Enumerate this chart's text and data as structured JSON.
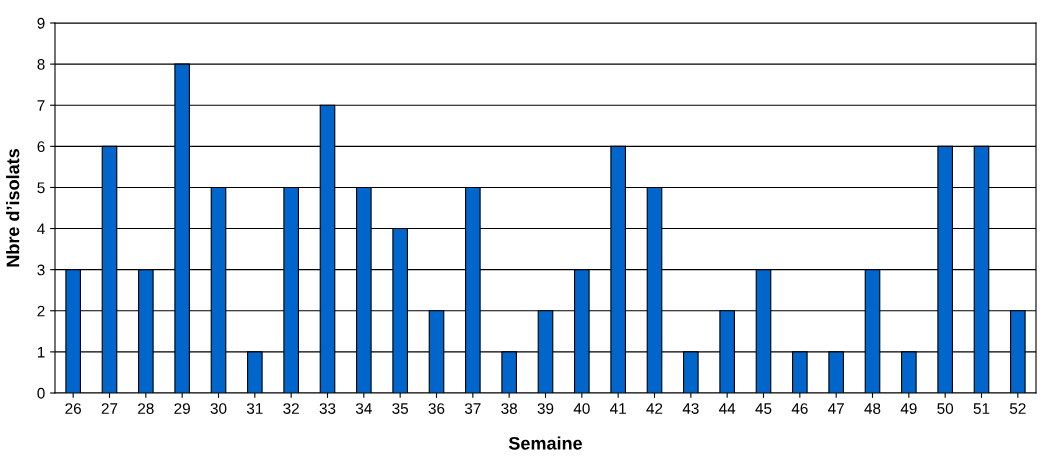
{
  "chart_data": {
    "type": "bar",
    "xlabel": "Semaine",
    "ylabel": "Nbre d’isolats",
    "categories": [
      "26",
      "27",
      "28",
      "29",
      "30",
      "31",
      "32",
      "33",
      "34",
      "35",
      "36",
      "37",
      "38",
      "39",
      "40",
      "41",
      "42",
      "43",
      "44",
      "45",
      "46",
      "47",
      "48",
      "49",
      "50",
      "51",
      "52"
    ],
    "series": [
      {
        "color": "#0066cc",
        "values": [
          3,
          6,
          3,
          8,
          5,
          1,
          5,
          7,
          5,
          4,
          2,
          5,
          1,
          2,
          3,
          6,
          5,
          1,
          2,
          3,
          1,
          1,
          3,
          1,
          6,
          6,
          2
        ]
      }
    ],
    "ylim": [
      0,
      9
    ],
    "yticks": [
      0,
      1,
      2,
      3,
      4,
      5,
      6,
      7,
      8,
      9
    ],
    "grid": "y"
  }
}
